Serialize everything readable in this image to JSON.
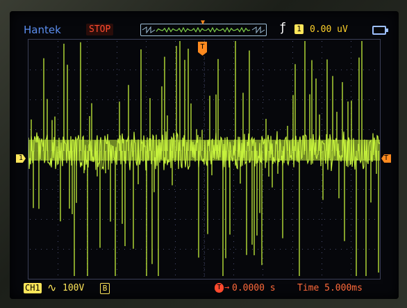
{
  "header": {
    "brand": "Hantek",
    "run_state": "STOP",
    "trigger_channel": "1",
    "trigger_level": "0.00  uV",
    "icons": [
      "rising-edge-icon",
      "battery-icon"
    ]
  },
  "markers": {
    "trigger_position": "T",
    "channel_ground": "1",
    "trigger_level": "T"
  },
  "footer": {
    "channel": "CH1",
    "coupling_icon": "ac-coupling-icon",
    "coupling_glyph": "∿",
    "volts_div": "100V",
    "bandwidth": "B",
    "trigger_badge": "T",
    "trigger_arrow": "→",
    "trigger_offset": "0.0000 s",
    "timebase": "Time 5.000ms"
  },
  "colors": {
    "trace": "#c6f23c",
    "grid": "#4a4e72",
    "channel": "#ffe65a",
    "trigger": "#ff8a1f",
    "stop": "#ff4a2e",
    "brand": "#5b8ef0"
  }
}
